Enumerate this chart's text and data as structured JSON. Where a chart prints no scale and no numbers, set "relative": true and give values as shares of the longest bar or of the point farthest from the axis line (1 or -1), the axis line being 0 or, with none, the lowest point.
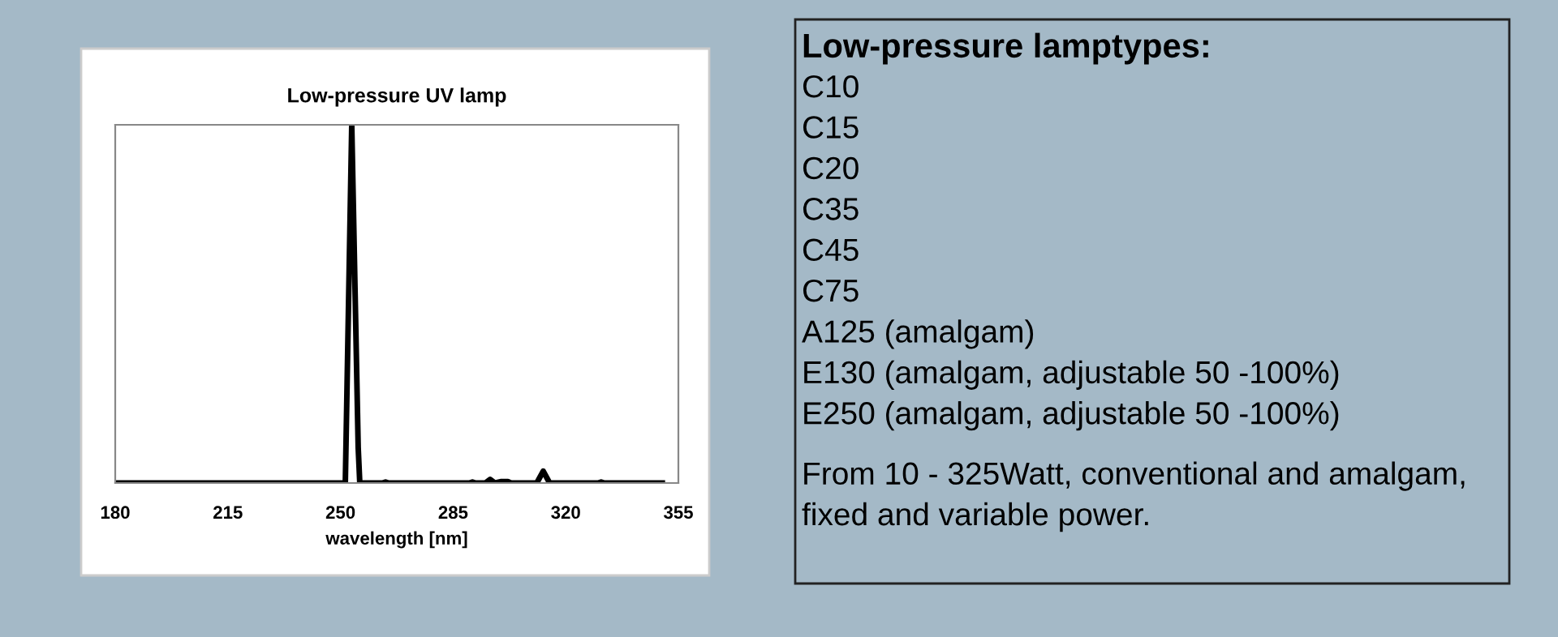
{
  "chart_data": [
    {
      "type": "line",
      "title": "Low-pressure UV lamp",
      "xlabel": "wavelength [nm]",
      "relative": true,
      "xlim": [
        180,
        355
      ],
      "xticks": [
        180,
        215,
        250,
        285,
        320,
        355
      ],
      "grid": false,
      "legend": false,
      "marker": "none",
      "line_style": "solid",
      "series": [
        {
          "color": "#000000",
          "x": [
            180,
            251.5,
            253.5,
            255.5,
            256,
            263,
            264,
            265,
            290,
            291,
            292,
            295,
            296.5,
            298,
            300,
            302,
            303,
            311,
            313,
            315,
            330,
            331,
            332,
            350
          ],
          "values": [
            0,
            0,
            1,
            0.1,
            0,
            0,
            0.003,
            0,
            0,
            0.003,
            0,
            0,
            0.01,
            0,
            0.004,
            0.004,
            0,
            0,
            0.033,
            0,
            0,
            0.003,
            0,
            0
          ]
        }
      ]
    },
    {
      "type": "other",
      "title": "Low-pressure lamptypes:",
      "annotations": [
        "C10",
        "C15",
        "C20",
        "C35",
        "C45",
        "C75",
        "A125 (amalgam)",
        "E130 (amalgam, adjustable 50 -100%)",
        "E250 (amalgam, adjustable 50 -100%)",
        "From 10 - 325Watt, conventional and amalgam,",
        "fixed and variable power."
      ]
    }
  ]
}
